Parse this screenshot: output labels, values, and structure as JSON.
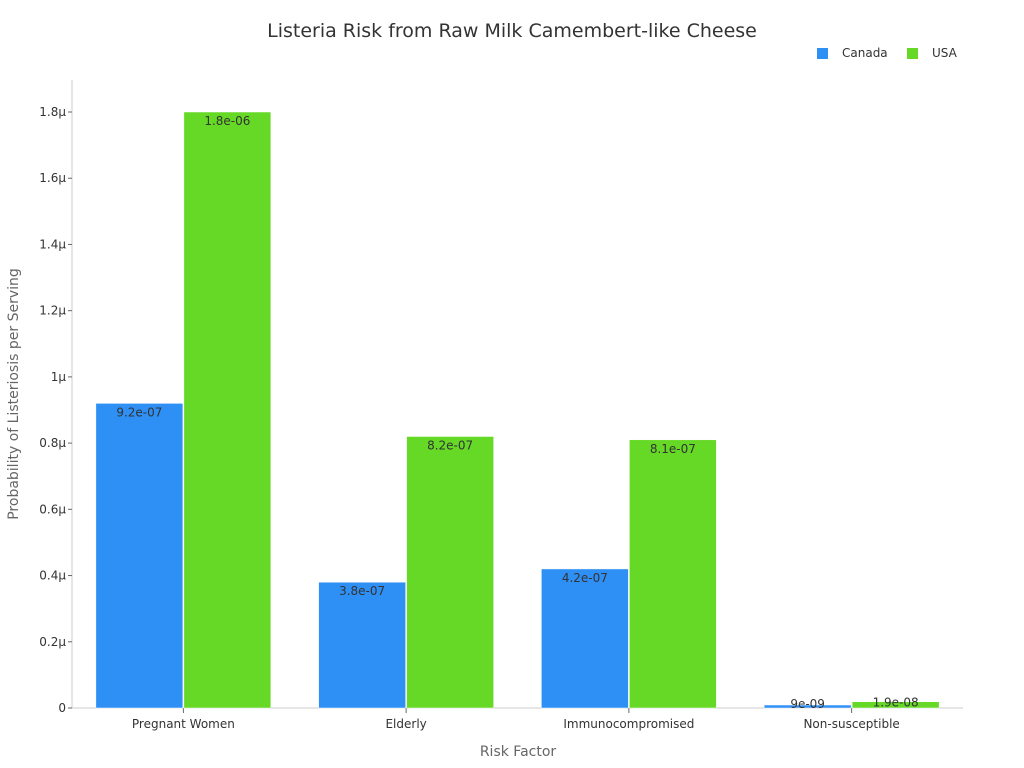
{
  "chart_data": {
    "type": "bar",
    "title": "Listeria Risk from Raw Milk Camembert-like Cheese",
    "xlabel": "Risk Factor",
    "ylabel": "Probability of Listeriosis per Serving",
    "categories": [
      "Pregnant Women",
      "Elderly",
      "Immunocompromised",
      "Non-susceptible"
    ],
    "series": [
      {
        "name": "Canada",
        "color": "#2e8ff5",
        "values": [
          9.2e-07,
          3.8e-07,
          4.2e-07,
          9e-09
        ],
        "labels": [
          "9.2e-07",
          "3.8e-07",
          "4.2e-07",
          "9e-09"
        ]
      },
      {
        "name": "USA",
        "color": "#66d926",
        "values": [
          1.8e-06,
          8.2e-07,
          8.1e-07,
          1.9e-08
        ],
        "labels": [
          "1.8e-06",
          "8.2e-07",
          "8.1e-07",
          "1.9e-08"
        ]
      }
    ],
    "ylim": [
      0,
      1.9e-06
    ],
    "yticks": [
      0,
      2e-07,
      4e-07,
      6e-07,
      8e-07,
      1e-06,
      1.2e-06,
      1.4e-06,
      1.6e-06,
      1.8e-06
    ],
    "ytick_labels": [
      "0",
      "0.2µ",
      "0.4µ",
      "0.6µ",
      "0.8µ",
      "1µ",
      "1.2µ",
      "1.4µ",
      "1.6µ",
      "1.8µ"
    ],
    "grid": false,
    "legend": "top-right"
  }
}
